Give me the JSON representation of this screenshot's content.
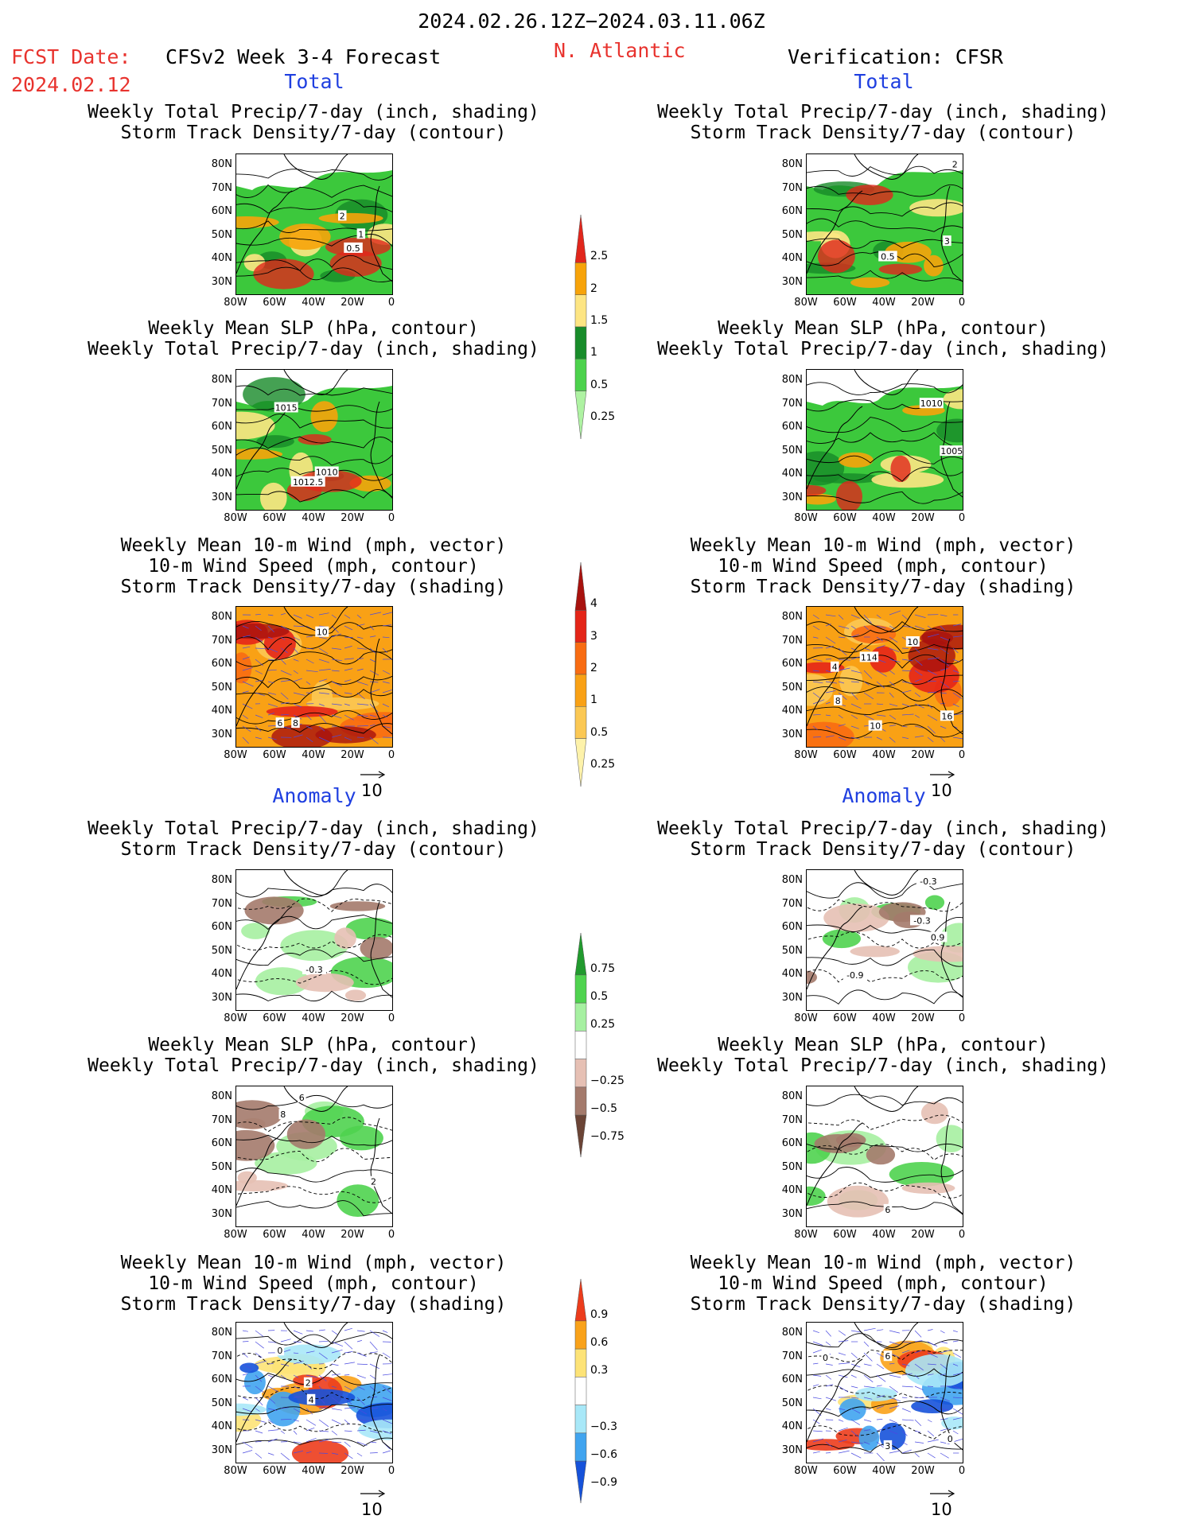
{
  "header": {
    "date_range": "2024.02.26.12Z−2024.03.11.06Z",
    "fcst_label": "FCST Date:",
    "fcst_date": "2024.02.12",
    "model": "CFSv2 Week 3-4 Forecast",
    "region": "N. Atlantic",
    "verification": "Verification: CFSR"
  },
  "sections": {
    "total": "Total",
    "anomaly": "Anomaly"
  },
  "titles": {
    "precip": [
      "Weekly Total Precip/7-day (inch, shading)",
      "Storm Track Density/7-day (contour)"
    ],
    "slp": [
      "Weekly Mean SLP (hPa, contour)",
      "Weekly Total Precip/7-day (inch, shading)"
    ],
    "wind": [
      "Weekly Mean 10-m Wind (mph, vector)",
      "10-m Wind Speed (mph, contour)",
      "Storm Track Density/7-day (shading)"
    ]
  },
  "axes": {
    "lat_ticks": [
      "80N",
      "70N",
      "60N",
      "50N",
      "40N",
      "30N"
    ],
    "lon_ticks": [
      "80W",
      "60W",
      "40W",
      "20W",
      "0"
    ]
  },
  "vector_ref": "10",
  "colorbars": [
    {
      "labels": [
        "2.5",
        "2",
        "1.5",
        "1",
        "0.5",
        "0.25"
      ],
      "colors": [
        "#e1261c",
        "#f7a30a",
        "#fde583",
        "#188c2a",
        "#4cd24c",
        "#aef2a2"
      ]
    },
    {
      "labels": [
        "4",
        "3",
        "2",
        "1",
        "0.5",
        "0.25"
      ],
      "colors": [
        "#a8120e",
        "#e42518",
        "#f86c12",
        "#f9a115",
        "#fbc854",
        "#fdf2aa"
      ]
    },
    {
      "labels": [
        "0.75",
        "0.5",
        "0.25",
        "−0.25",
        "−0.5",
        "−0.75"
      ],
      "colors": [
        "#219a2e",
        "#4fd34f",
        "#a6f0a1",
        "#ffffff",
        "#e6c0b4",
        "#a47a6c",
        "#6b4436"
      ]
    },
    {
      "labels": [
        "0.9",
        "0.6",
        "0.3",
        "−0.3",
        "−0.6",
        "−0.9"
      ],
      "colors": [
        "#ec3c1c",
        "#f9a21a",
        "#fde377",
        "#ffffff",
        "#a8e8f8",
        "#40a4ef",
        "#1652da"
      ]
    }
  ],
  "panels": [
    {
      "id": "p1",
      "labels": [
        "2",
        "1",
        "0.5"
      ]
    },
    {
      "id": "p2",
      "labels": [
        "2",
        "3",
        "0.5"
      ]
    },
    {
      "id": "p3",
      "labels": [
        "1015",
        "1010",
        "1012.5"
      ]
    },
    {
      "id": "p4",
      "labels": [
        "1010",
        "1005"
      ]
    },
    {
      "id": "p5",
      "labels": [
        "10",
        "6",
        "8"
      ]
    },
    {
      "id": "p6",
      "labels": [
        "114",
        "10",
        "16",
        "8",
        "4",
        "10"
      ]
    },
    {
      "id": "p7",
      "labels": [
        "-0.3"
      ]
    },
    {
      "id": "p8",
      "labels": [
        "-0.3",
        "-0.3",
        "0.9",
        "-0.9"
      ]
    },
    {
      "id": "p9",
      "labels": [
        "6",
        "8",
        "2"
      ]
    },
    {
      "id": "p10",
      "labels": [
        "6"
      ]
    },
    {
      "id": "p11",
      "labels": [
        "0",
        "2",
        "4"
      ]
    },
    {
      "id": "p12",
      "labels": [
        "0",
        "6",
        "3",
        "0"
      ]
    }
  ]
}
